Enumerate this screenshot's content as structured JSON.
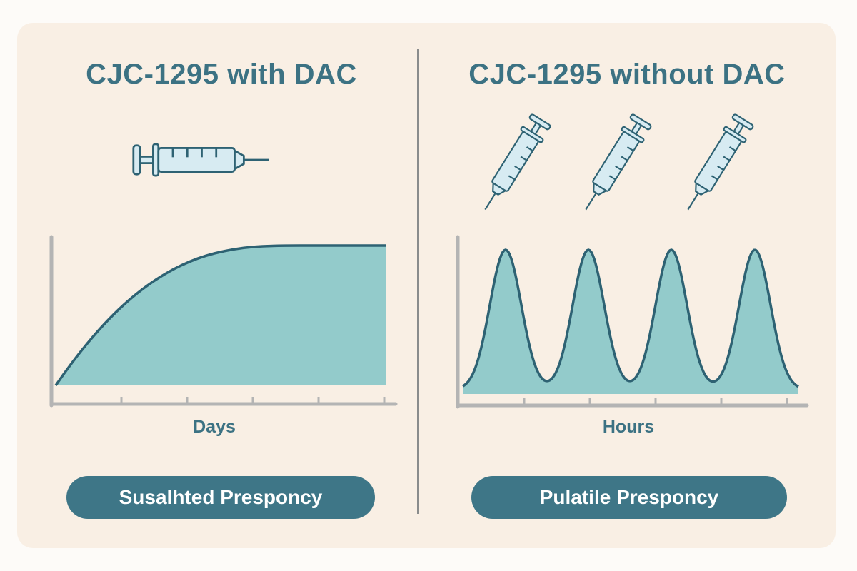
{
  "panels": {
    "left": {
      "title": "CJC-1295 with DAC",
      "xlabel": "Days",
      "badge": "Susalhted Presponcy"
    },
    "right": {
      "title": "CJC-1295 without DAC",
      "xlabel": "Hours",
      "badge": "Pulatile Presponcy"
    }
  },
  "colors": {
    "card_bg": "#f9efe4",
    "accent_dark": "#3e7687",
    "curve_fill": "#93cbcb",
    "curve_stroke": "#2e6273",
    "axis": "#b4b4b4",
    "syringe_fill": "#d7ebf2"
  },
  "icons": [
    "syringe-icon"
  ]
}
